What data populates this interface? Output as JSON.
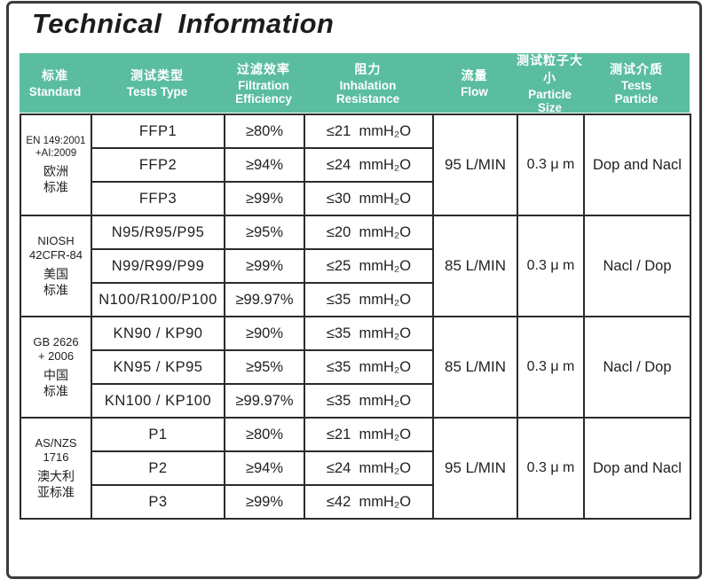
{
  "page": {
    "title": "Technical Information"
  },
  "colors": {
    "header_bg": "#5abda0",
    "header_text": "#ffffff",
    "cell_border": "#2b2b2b",
    "frame_border": "#3b3b3b",
    "body_text": "#1f1f1f"
  },
  "table": {
    "header": [
      {
        "zh": "标准",
        "en": "Standard"
      },
      {
        "zh": "测试类型",
        "en": "Tests Type"
      },
      {
        "zh": "过滤效率",
        "en": "Filtration\nEfficiency"
      },
      {
        "zh": "阻力",
        "en": "Inhalation\nResistance"
      },
      {
        "zh": "流量",
        "en": "Flow"
      },
      {
        "zh": "测试粒子大小",
        "en": "Particle\nSize"
      },
      {
        "zh": "测试介质",
        "en": "Tests\nParticle"
      }
    ],
    "groups": [
      {
        "standard_code": "EN 149:2001\n+AI:2009",
        "standard_zh": "欧洲\n标准",
        "rows": [
          {
            "type": "FFP1",
            "efficiency": "≥80%",
            "resistance": "≤21  mmH₂O"
          },
          {
            "type": "FFP2",
            "efficiency": "≥94%",
            "resistance": "≤24  mmH₂O"
          },
          {
            "type": "FFP3",
            "efficiency": "≥99%",
            "resistance": "≤30  mmH₂O"
          }
        ],
        "flow": "95 L/MIN",
        "particle_size": "0.3 μ m",
        "tests_particle": "Dop and Nacl"
      },
      {
        "standard_code": "NIOSH\n42CFR-84",
        "standard_zh": "美国\n标准",
        "rows": [
          {
            "type": "N95/R95/P95",
            "efficiency": "≥95%",
            "resistance": "≤20  mmH₂O"
          },
          {
            "type": "N99/R99/P99",
            "efficiency": "≥99%",
            "resistance": "≤25  mmH₂O"
          },
          {
            "type": "N100/R100/P100",
            "efficiency": "≥99.97%",
            "resistance": "≤35  mmH₂O"
          }
        ],
        "flow": "85 L/MIN",
        "particle_size": "0.3 μ m",
        "tests_particle": "Nacl / Dop"
      },
      {
        "standard_code": "GB 2626\n+ 2006",
        "standard_zh": "中国\n标准",
        "rows": [
          {
            "type": "KN90 / KP90",
            "efficiency": "≥90%",
            "resistance": "≤35  mmH₂O"
          },
          {
            "type": "KN95 / KP95",
            "efficiency": "≥95%",
            "resistance": "≤35  mmH₂O"
          },
          {
            "type": "KN100 / KP100",
            "efficiency": "≥99.97%",
            "resistance": "≤35  mmH₂O"
          }
        ],
        "flow": "85 L/MIN",
        "particle_size": "0.3 μ m",
        "tests_particle": "Nacl / Dop"
      },
      {
        "standard_code": "AS/NZS\n1716",
        "standard_zh": "澳大利\n亚标准",
        "rows": [
          {
            "type": "P1",
            "efficiency": "≥80%",
            "resistance": "≤21  mmH₂O"
          },
          {
            "type": "P2",
            "efficiency": "≥94%",
            "resistance": "≤24  mmH₂O"
          },
          {
            "type": "P3",
            "efficiency": "≥99%",
            "resistance": "≤42  mmH₂O"
          }
        ],
        "flow": "95 L/MIN",
        "particle_size": "0.3 μ m",
        "tests_particle": "Dop and Nacl"
      }
    ]
  }
}
